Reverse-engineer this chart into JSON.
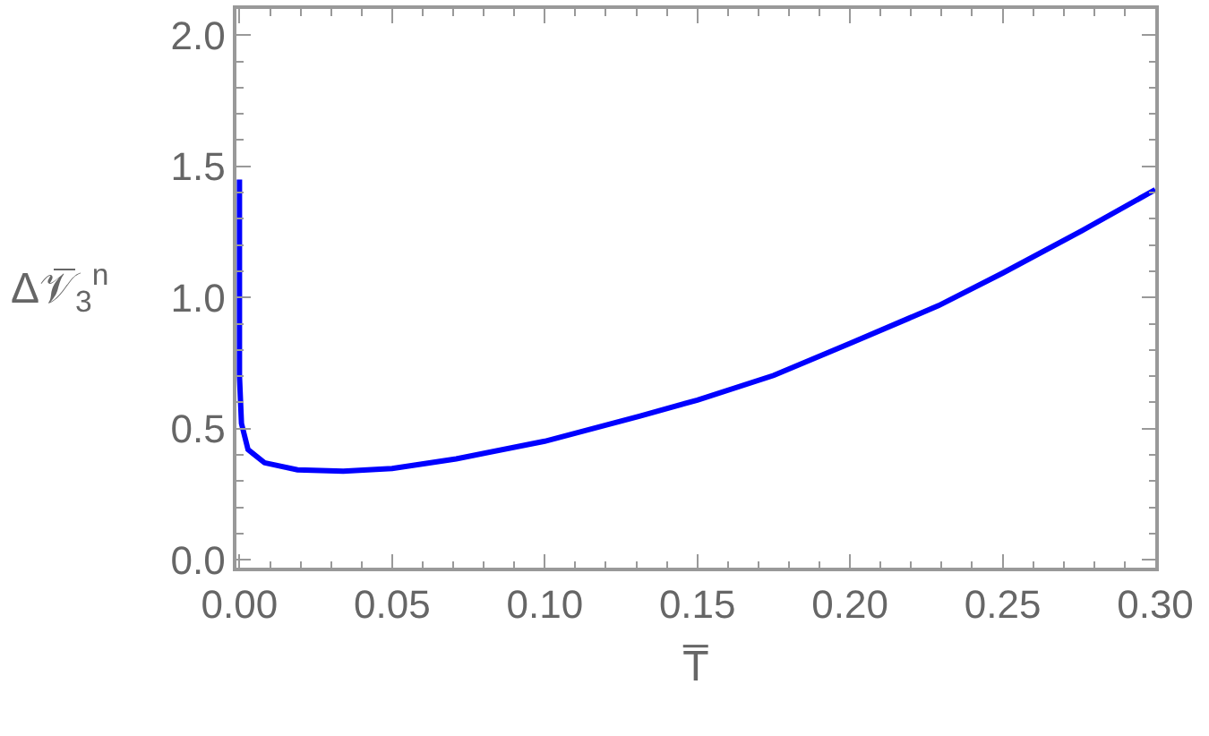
{
  "chart_data": {
    "type": "line",
    "xlabel": "T̅",
    "ylabel": "Δ𝒱̅$_{3}$$^{n}$",
    "series": [
      {
        "color": "#0000ff",
        "x": [
          0,
          0,
          0.00065,
          0.0028,
          0.0082,
          0.019,
          0.034,
          0.05,
          0.071,
          0.1,
          0.131,
          0.15,
          0.175,
          0.2,
          0.229,
          0.25,
          0.276,
          0.3
        ],
        "values": [
          1.45,
          0.7,
          0.52,
          0.42,
          0.37,
          0.343,
          0.338,
          0.348,
          0.385,
          0.452,
          0.547,
          0.609,
          0.703,
          0.825,
          0.969,
          1.093,
          1.255,
          1.411
        ]
      }
    ],
    "xlim": [
      -0.001,
      0.3
    ],
    "xticks": [
      {
        "value": 0,
        "label": "0.00"
      },
      0.05,
      {
        "value": 0.1,
        "label": "0.10"
      },
      0.15,
      {
        "value": 0.2,
        "label": "0.20"
      },
      0.25,
      {
        "value": 0.3,
        "label": "0.30"
      }
    ],
    "ylim": [
      -0.03,
      2.1
    ],
    "yticks": [
      {
        "value": 0,
        "label": "0.0"
      },
      0.5,
      {
        "value": 1,
        "label": "1.0"
      },
      1.5,
      {
        "value": 2,
        "label": "2.0"
      }
    ],
    "marker": "none",
    "line_style": "solid"
  }
}
